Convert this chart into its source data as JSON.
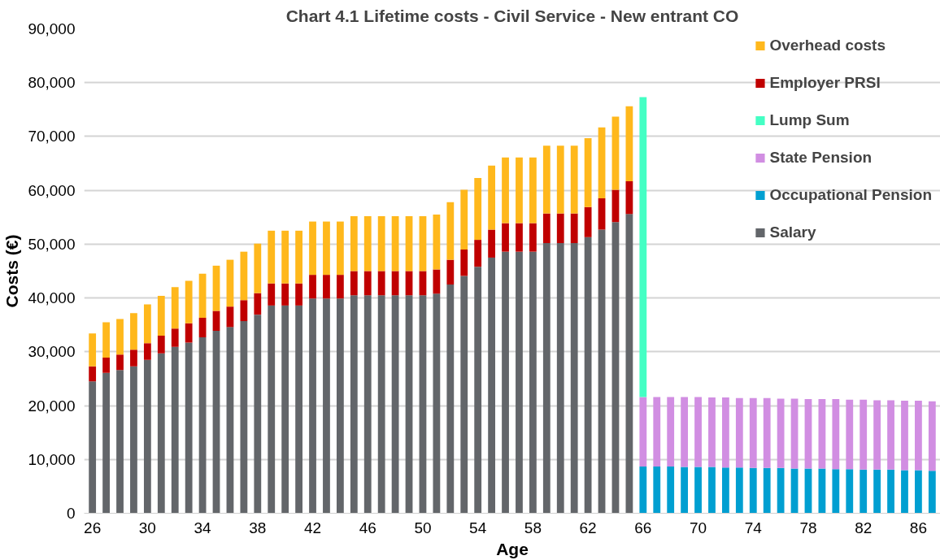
{
  "chart_data": {
    "type": "bar",
    "stacked": true,
    "title": "Chart 4.1 Lifetime costs - Civil Service - New entrant CO",
    "xlabel": "Age",
    "ylabel": "Costs (€)",
    "categories": [
      "26",
      null,
      null,
      null,
      "30",
      null,
      null,
      null,
      "34",
      null,
      null,
      null,
      "38",
      null,
      null,
      null,
      "42",
      null,
      null,
      null,
      "46",
      null,
      null,
      null,
      "50",
      null,
      null,
      null,
      "54",
      null,
      null,
      null,
      "58",
      null,
      null,
      null,
      "62",
      null,
      null,
      null,
      "66",
      null,
      null,
      null,
      "70",
      null,
      null,
      null,
      "74",
      null,
      null,
      null,
      "78",
      null,
      null,
      null,
      "82",
      null,
      null,
      null,
      "86",
      null
    ],
    "series": [
      {
        "name": "Salary",
        "color": "#63666a",
        "values": [
          24500,
          26100,
          26600,
          27300,
          28500,
          29700,
          30900,
          31700,
          32700,
          33900,
          34600,
          35700,
          36900,
          38600,
          38600,
          38600,
          39900,
          39900,
          39900,
          40500,
          40500,
          40500,
          40500,
          40500,
          40500,
          40800,
          42500,
          44100,
          45800,
          47500,
          48600,
          48600,
          48600,
          50200,
          50200,
          50200,
          51300,
          52700,
          54100,
          55600,
          null,
          null,
          null,
          null,
          null,
          null,
          null,
          null,
          null,
          null,
          null,
          null,
          null,
          null,
          null,
          null,
          null,
          null,
          null,
          null,
          null,
          null
        ]
      },
      {
        "name": "Occupational Pension",
        "color": "#009fd1",
        "values": [
          null,
          null,
          null,
          null,
          null,
          null,
          null,
          null,
          null,
          null,
          null,
          null,
          null,
          null,
          null,
          null,
          null,
          null,
          null,
          null,
          null,
          null,
          null,
          null,
          null,
          null,
          null,
          null,
          null,
          null,
          null,
          null,
          null,
          null,
          null,
          null,
          null,
          null,
          null,
          null,
          8700,
          8700,
          8700,
          8600,
          8600,
          8600,
          8500,
          8500,
          8400,
          8400,
          8400,
          8300,
          8300,
          8300,
          8200,
          8200,
          8100,
          8100,
          8100,
          8000,
          8000,
          7900
        ]
      },
      {
        "name": "State Pension",
        "color": "#d18ee2",
        "values": [
          null,
          null,
          null,
          null,
          null,
          null,
          null,
          null,
          null,
          null,
          null,
          null,
          null,
          null,
          null,
          null,
          null,
          null,
          null,
          null,
          null,
          null,
          null,
          null,
          null,
          null,
          null,
          null,
          null,
          null,
          null,
          null,
          null,
          null,
          null,
          null,
          null,
          null,
          null,
          null,
          12900,
          12900,
          12900,
          13000,
          13000,
          12900,
          13000,
          12900,
          13000,
          13000,
          12900,
          13000,
          12900,
          12900,
          13000,
          12900,
          13000,
          12900,
          12900,
          12900,
          12900,
          12900
        ]
      },
      {
        "name": "Lump Sum",
        "color": "#44ffc4",
        "values": [
          null,
          null,
          null,
          null,
          null,
          null,
          null,
          null,
          null,
          null,
          null,
          null,
          null,
          null,
          null,
          null,
          null,
          null,
          null,
          null,
          null,
          null,
          null,
          null,
          null,
          null,
          null,
          null,
          null,
          null,
          null,
          null,
          null,
          null,
          null,
          null,
          null,
          null,
          null,
          null,
          55700,
          null,
          null,
          null,
          null,
          null,
          null,
          null,
          null,
          null,
          null,
          null,
          null,
          null,
          null,
          null,
          null,
          null,
          null,
          null,
          null,
          null
        ]
      },
      {
        "name": "Employer PRSI",
        "color": "#c00000",
        "values": [
          2800,
          2800,
          2900,
          3100,
          3100,
          3300,
          3400,
          3600,
          3600,
          3700,
          3800,
          3900,
          4000,
          4100,
          4100,
          4100,
          4400,
          4400,
          4400,
          4500,
          4500,
          4500,
          4500,
          4500,
          4500,
          4500,
          4600,
          4900,
          5000,
          5200,
          5300,
          5300,
          5300,
          5500,
          5500,
          5500,
          5600,
          5800,
          6000,
          6100,
          null,
          null,
          null,
          null,
          null,
          null,
          null,
          null,
          null,
          null,
          null,
          null,
          null,
          null,
          null,
          null,
          null,
          null,
          null,
          null,
          null,
          null
        ]
      },
      {
        "name": "Overhead costs",
        "color": "#ffb81c",
        "values": [
          6100,
          6600,
          6600,
          6800,
          7200,
          7400,
          7700,
          7900,
          8200,
          8400,
          8700,
          9000,
          9200,
          9800,
          9800,
          9800,
          9900,
          9900,
          9900,
          10200,
          10200,
          10200,
          10200,
          10200,
          10200,
          10200,
          10700,
          11100,
          11500,
          11900,
          12200,
          12200,
          12200,
          12600,
          12600,
          12600,
          12800,
          13200,
          13600,
          13900,
          null,
          null,
          null,
          null,
          null,
          null,
          null,
          null,
          null,
          null,
          null,
          null,
          null,
          null,
          null,
          null,
          null,
          null,
          null,
          null,
          null,
          null
        ]
      }
    ],
    "ylim": [
      0,
      90000
    ],
    "yticks": [
      {
        "value": 0,
        "label": "0"
      },
      {
        "value": 10000,
        "label": "10,000"
      },
      {
        "value": 20000,
        "label": "20,000"
      },
      {
        "value": 30000,
        "label": "30,000"
      },
      {
        "value": 40000,
        "label": "40,000"
      },
      {
        "value": 50000,
        "label": "50,000"
      },
      {
        "value": 60000,
        "label": "60,000"
      },
      {
        "value": 70000,
        "label": "70,000"
      },
      {
        "value": 80000,
        "label": "80,000"
      },
      {
        "value": 90000,
        "label": "90,000"
      }
    ],
    "grid": "y",
    "legend": "right"
  }
}
